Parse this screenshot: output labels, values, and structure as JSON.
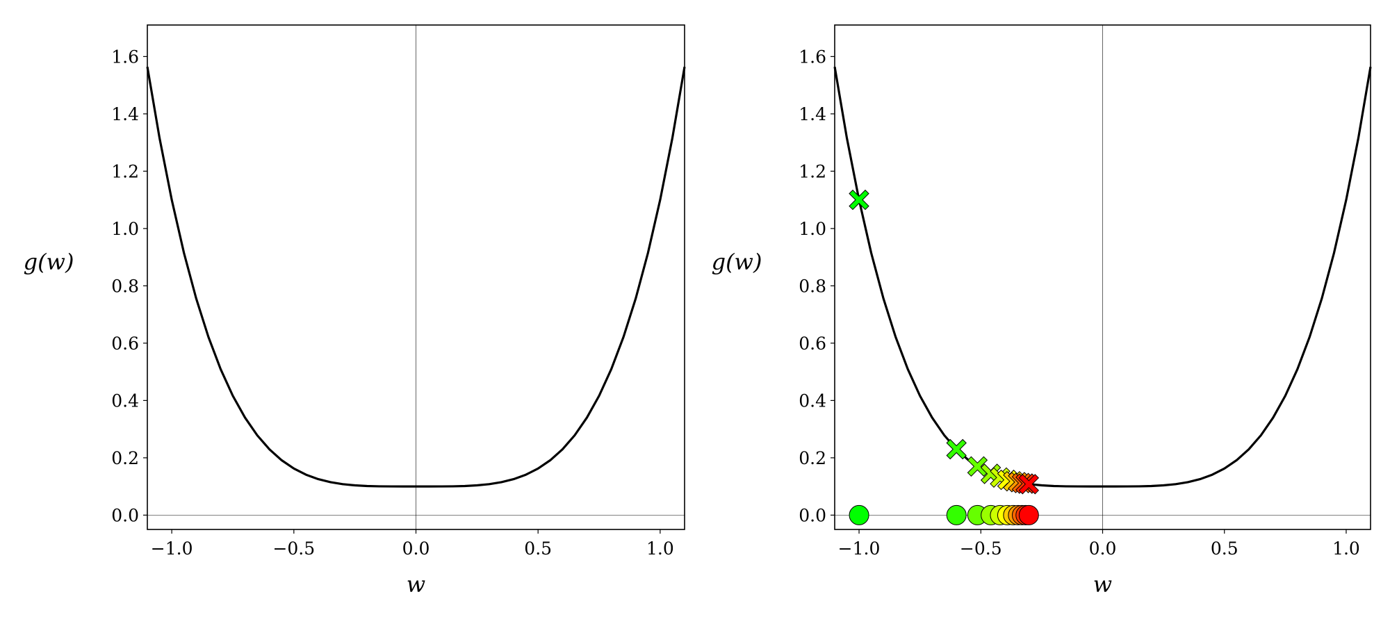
{
  "chart_data": [
    {
      "type": "line",
      "xlabel": "w",
      "ylabel": "g(w)",
      "x": [
        -1.1,
        -1.05,
        -1.0,
        -0.95,
        -0.9,
        -0.85,
        -0.8,
        -0.75,
        -0.7,
        -0.65,
        -0.6,
        -0.55,
        -0.5,
        -0.45,
        -0.4,
        -0.35,
        -0.3,
        -0.25,
        -0.2,
        -0.15,
        -0.1,
        -0.05,
        0,
        0.05,
        0.1,
        0.15,
        0.2,
        0.25,
        0.3,
        0.35,
        0.4,
        0.45,
        0.5,
        0.55,
        0.6,
        0.65,
        0.7,
        0.75,
        0.8,
        0.85,
        0.9,
        0.95,
        1.0,
        1.05,
        1.1
      ],
      "y": [
        1.5641,
        1.3155,
        1.1,
        0.9145,
        0.7561,
        0.622,
        0.5096,
        0.4164,
        0.3401,
        0.2785,
        0.2296,
        0.1915,
        0.1625,
        0.141,
        0.1256,
        0.115,
        0.1081,
        0.1039,
        0.1016,
        0.1005,
        0.1001,
        0.1,
        0.1,
        0.1,
        0.1001,
        0.1005,
        0.1016,
        0.1039,
        0.1081,
        0.115,
        0.1256,
        0.141,
        0.1625,
        0.1915,
        0.2296,
        0.2785,
        0.3401,
        0.4164,
        0.5096,
        0.622,
        0.7561,
        0.9145,
        1.1,
        1.3155,
        1.5641
      ],
      "color": "#000000",
      "xlim": [
        -1.1,
        1.1
      ],
      "ylim": [
        -0.05,
        1.71
      ],
      "xticks": [
        {
          "value": -1,
          "label": "−1.0"
        },
        {
          "value": -0.5,
          "label": "−0.5"
        },
        {
          "value": 0,
          "label": "0.0"
        },
        {
          "value": 0.5,
          "label": "0.5"
        },
        {
          "value": 1,
          "label": "1.0"
        }
      ],
      "yticks": [
        {
          "value": 0,
          "label": "0.0"
        },
        {
          "value": 0.2,
          "label": "0.2"
        },
        {
          "value": 0.4,
          "label": "0.4"
        },
        {
          "value": 0.6,
          "label": "0.6"
        },
        {
          "value": 0.8,
          "label": "0.8"
        },
        {
          "value": 1,
          "label": "1.0"
        },
        {
          "value": 1.2,
          "label": "1.2"
        },
        {
          "value": 1.4,
          "label": "1.4"
        },
        {
          "value": 1.6,
          "label": "1.6"
        }
      ]
    },
    {
      "type": "line",
      "xlabel": "w",
      "ylabel": "g(w)",
      "x": [
        -1.1,
        -1.05,
        -1.0,
        -0.95,
        -0.9,
        -0.85,
        -0.8,
        -0.75,
        -0.7,
        -0.65,
        -0.6,
        -0.55,
        -0.5,
        -0.45,
        -0.4,
        -0.35,
        -0.3,
        -0.25,
        -0.2,
        -0.15,
        -0.1,
        -0.05,
        0,
        0.05,
        0.1,
        0.15,
        0.2,
        0.25,
        0.3,
        0.35,
        0.4,
        0.45,
        0.5,
        0.55,
        0.6,
        0.65,
        0.7,
        0.75,
        0.8,
        0.85,
        0.9,
        0.95,
        1.0,
        1.05,
        1.1
      ],
      "y": [
        1.5641,
        1.3155,
        1.1,
        0.9145,
        0.7561,
        0.622,
        0.5096,
        0.4164,
        0.3401,
        0.2785,
        0.2296,
        0.1915,
        0.1625,
        0.141,
        0.1256,
        0.115,
        0.1081,
        0.1039,
        0.1016,
        0.1005,
        0.1001,
        0.1,
        0.1,
        0.1,
        0.1001,
        0.1005,
        0.1016,
        0.1039,
        0.1081,
        0.115,
        0.1256,
        0.141,
        0.1625,
        0.1915,
        0.2296,
        0.2785,
        0.3401,
        0.4164,
        0.5096,
        0.622,
        0.7561,
        0.9145,
        1.1,
        1.3155,
        1.5641
      ],
      "color": "#000000",
      "steps": {
        "w": [
          -1.0,
          -0.6,
          -0.514,
          -0.459,
          -0.421,
          -0.391,
          -0.367,
          -0.347,
          -0.331,
          -0.316,
          -0.303
        ],
        "g": [
          1.1,
          0.23,
          0.17,
          0.144,
          0.131,
          0.123,
          0.118,
          0.115,
          0.112,
          0.11,
          0.108
        ],
        "colors": [
          "#00ff00",
          "#33ff00",
          "#66ff00",
          "#99ff00",
          "#ccff00",
          "#ffff00",
          "#ffcc00",
          "#ff9900",
          "#ff6600",
          "#ff3300",
          "#ff0000"
        ]
      },
      "xlim": [
        -1.1,
        1.1
      ],
      "ylim": [
        -0.05,
        1.71
      ],
      "xticks": [
        {
          "value": -1,
          "label": "−1.0"
        },
        {
          "value": -0.5,
          "label": "−0.5"
        },
        {
          "value": 0,
          "label": "0.0"
        },
        {
          "value": 0.5,
          "label": "0.5"
        },
        {
          "value": 1,
          "label": "1.0"
        }
      ],
      "yticks": [
        {
          "value": 0,
          "label": "0.0"
        },
        {
          "value": 0.2,
          "label": "0.2"
        },
        {
          "value": 0.4,
          "label": "0.4"
        },
        {
          "value": 0.6,
          "label": "0.6"
        },
        {
          "value": 0.8,
          "label": "0.8"
        },
        {
          "value": 1,
          "label": "1.0"
        },
        {
          "value": 1.2,
          "label": "1.2"
        },
        {
          "value": 1.4,
          "label": "1.4"
        },
        {
          "value": 1.6,
          "label": "1.6"
        }
      ]
    }
  ]
}
